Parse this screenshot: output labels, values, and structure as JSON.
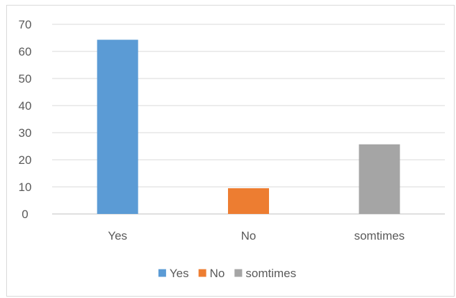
{
  "chart_data": {
    "type": "bar",
    "categories": [
      "Yes",
      "No",
      "somtimes"
    ],
    "values": [
      64.3,
      9.5,
      25.7
    ],
    "colors": [
      "#5b9bd5",
      "#ed7d31",
      "#a5a5a5"
    ],
    "ylim": [
      0,
      70
    ],
    "yticks": [
      0,
      10,
      20,
      30,
      40,
      50,
      60,
      70
    ],
    "grid": true,
    "legend": {
      "position": "bottom",
      "entries": [
        "Yes",
        "No",
        "somtimes"
      ]
    },
    "title": "",
    "xlabel": "",
    "ylabel": ""
  }
}
